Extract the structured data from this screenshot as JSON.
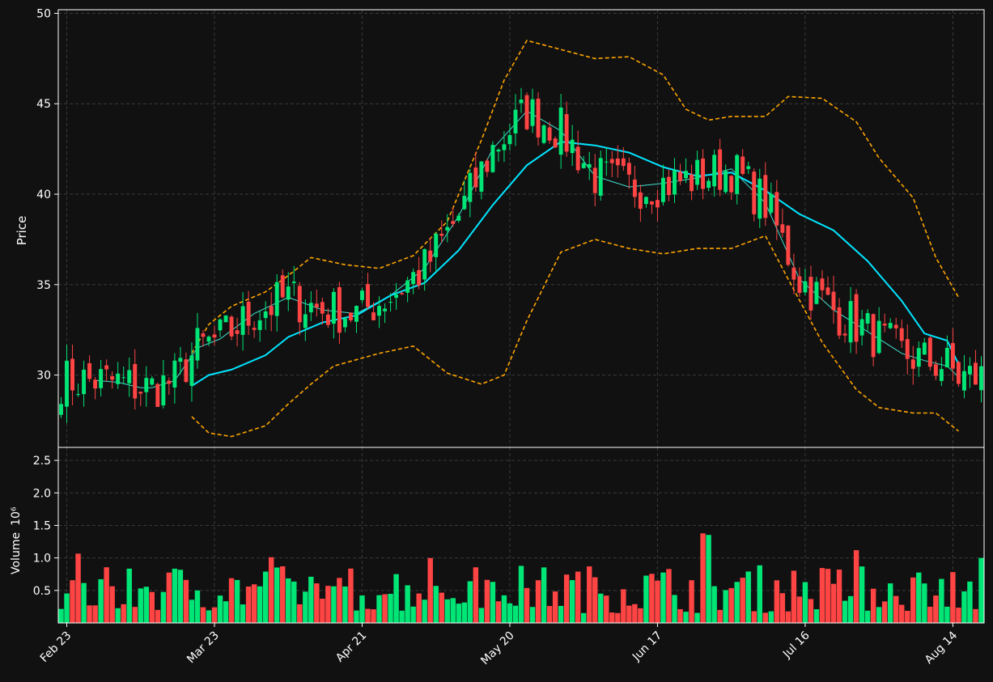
{
  "chart_data": [
    {
      "type": "candlestick",
      "ylabel": "Price",
      "ylim": [
        26,
        50.2
      ],
      "yticks": [
        "30",
        "35",
        "40",
        "45",
        "50"
      ],
      "xticks": [
        "Feb 23",
        "Mar 23",
        "Apr 21",
        "May 20",
        "Jun 17",
        "Jul 16",
        "Aug 14"
      ],
      "x_start": "Feb 22",
      "x_end": "Aug 19",
      "grid": true,
      "colors": {
        "up": "#00e676",
        "down": "#ff4444",
        "ma_short": "#40e0d0",
        "ma_long": "#00e5ff",
        "bands": "#ffa500"
      },
      "ma_short_path": [
        [
          6,
          29.7
        ],
        [
          10,
          29.6
        ],
        [
          14,
          29.3
        ],
        [
          16,
          29.3
        ],
        [
          20,
          29.7
        ],
        [
          24,
          31.5
        ],
        [
          28,
          32.0
        ],
        [
          34,
          33.4
        ],
        [
          40,
          34.3
        ],
        [
          46,
          33.6
        ],
        [
          52,
          33.4
        ],
        [
          58,
          34.4
        ],
        [
          64,
          35.9
        ],
        [
          70,
          38.8
        ],
        [
          76,
          42.5
        ],
        [
          82,
          44.6
        ],
        [
          88,
          43.5
        ],
        [
          94,
          41.0
        ],
        [
          100,
          40.4
        ],
        [
          106,
          40.6
        ],
        [
          112,
          40.9
        ],
        [
          118,
          41.4
        ],
        [
          124,
          39.5
        ],
        [
          130,
          35.3
        ],
        [
          136,
          33.6
        ],
        [
          142,
          32.4
        ],
        [
          148,
          31.2
        ],
        [
          152,
          30.8
        ],
        [
          156,
          30.5
        ],
        [
          158,
          29.9
        ]
      ],
      "ma_long_path": [
        [
          23,
          29.4
        ],
        [
          26,
          30.0
        ],
        [
          30,
          30.3
        ],
        [
          36,
          31.1
        ],
        [
          40,
          32.1
        ],
        [
          46,
          32.9
        ],
        [
          52,
          33.3
        ],
        [
          58,
          34.4
        ],
        [
          64,
          35.1
        ],
        [
          70,
          36.9
        ],
        [
          76,
          39.4
        ],
        [
          82,
          41.6
        ],
        [
          88,
          42.9
        ],
        [
          94,
          42.7
        ],
        [
          100,
          42.3
        ],
        [
          106,
          41.5
        ],
        [
          112,
          41.0
        ],
        [
          118,
          41.2
        ],
        [
          124,
          40.2
        ],
        [
          130,
          38.9
        ],
        [
          136,
          38.0
        ],
        [
          142,
          36.3
        ],
        [
          148,
          34.1
        ],
        [
          152,
          32.3
        ],
        [
          156,
          31.9
        ],
        [
          158,
          30.6
        ]
      ],
      "band_upper_path": [
        [
          23,
          31.2
        ],
        [
          26,
          32.8
        ],
        [
          30,
          33.8
        ],
        [
          36,
          34.6
        ],
        [
          40,
          35.5
        ],
        [
          44,
          36.5
        ],
        [
          50,
          36.1
        ],
        [
          56,
          35.9
        ],
        [
          62,
          36.6
        ],
        [
          68,
          38.5
        ],
        [
          74,
          43.0
        ],
        [
          78,
          46.3
        ],
        [
          82,
          48.5
        ],
        [
          88,
          48.0
        ],
        [
          94,
          47.5
        ],
        [
          100,
          47.6
        ],
        [
          106,
          46.6
        ],
        [
          110,
          44.7
        ],
        [
          114,
          44.1
        ],
        [
          118,
          44.3
        ],
        [
          124,
          44.3
        ],
        [
          128,
          45.4
        ],
        [
          134,
          45.3
        ],
        [
          140,
          44.0
        ],
        [
          144,
          42.0
        ],
        [
          150,
          39.8
        ],
        [
          154,
          36.5
        ],
        [
          158,
          34.3
        ]
      ],
      "band_lower_path": [
        [
          23,
          27.7
        ],
        [
          26,
          26.8
        ],
        [
          30,
          26.6
        ],
        [
          36,
          27.2
        ],
        [
          40,
          28.4
        ],
        [
          44,
          29.5
        ],
        [
          48,
          30.5
        ],
        [
          56,
          31.2
        ],
        [
          62,
          31.6
        ],
        [
          68,
          30.1
        ],
        [
          74,
          29.5
        ],
        [
          78,
          30.0
        ],
        [
          82,
          33.0
        ],
        [
          88,
          36.8
        ],
        [
          94,
          37.5
        ],
        [
          100,
          37.0
        ],
        [
          106,
          36.7
        ],
        [
          112,
          37.0
        ],
        [
          118,
          37.0
        ],
        [
          124,
          37.7
        ],
        [
          128,
          35.3
        ],
        [
          134,
          31.8
        ],
        [
          140,
          29.2
        ],
        [
          144,
          28.2
        ],
        [
          150,
          27.9
        ],
        [
          154,
          27.9
        ],
        [
          158,
          26.9
        ]
      ]
    },
    {
      "type": "bar",
      "ylabel": "Volume",
      "ylabel_exponent": "10⁶",
      "ylim": [
        0,
        2.7
      ],
      "yticks": [
        "0.5",
        "1.0",
        "1.5",
        "2.0",
        "2.5"
      ],
      "grid": true
    }
  ]
}
